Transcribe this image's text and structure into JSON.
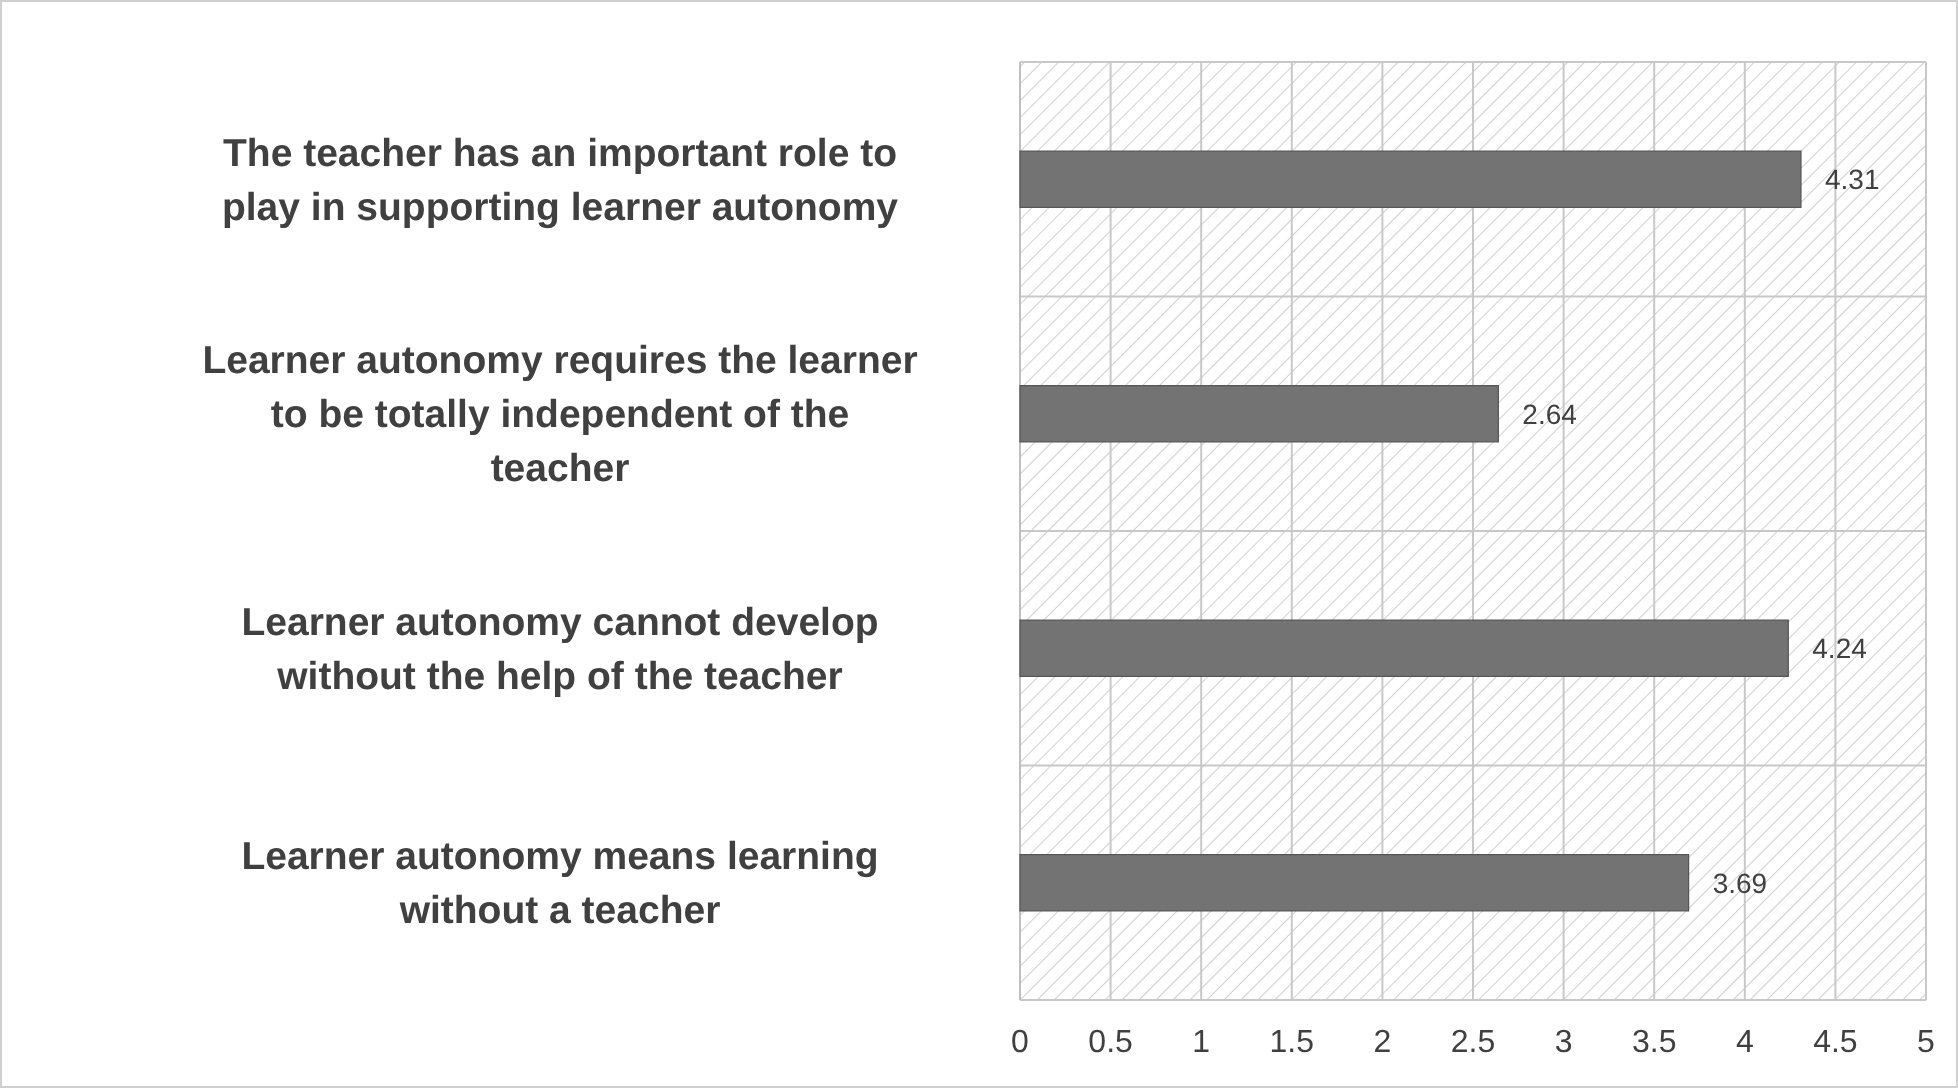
{
  "chart_data": {
    "type": "bar",
    "orientation": "horizontal",
    "categories": [
      "The teacher has an important role to play in supporting learner autonomy",
      "Learner autonomy requires the learner to be totally independent of the teacher",
      "Learner autonomy cannot develop without the help of the teacher",
      "Learner autonomy means learning without a teacher"
    ],
    "values": [
      4.31,
      2.64,
      4.24,
      3.69
    ],
    "color": "#737373",
    "xlim": [
      0,
      5
    ],
    "xticks": [
      0,
      0.5,
      1,
      1.5,
      2,
      2.5,
      3,
      3.5,
      4,
      4.5,
      5
    ],
    "grid": true,
    "data_labels": true
  }
}
